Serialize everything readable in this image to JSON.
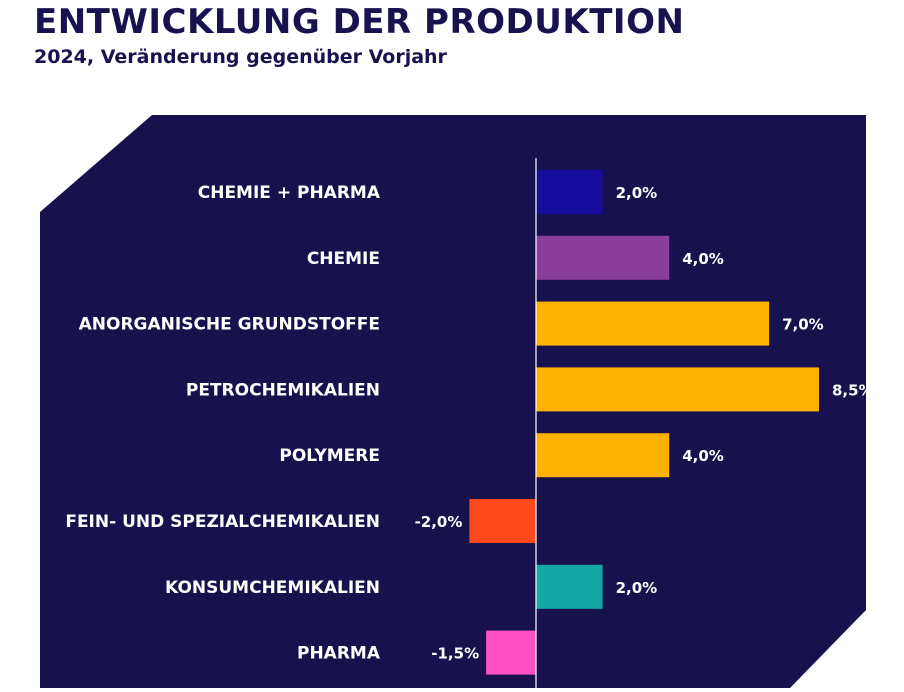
{
  "header": {
    "title": "ENTWICKLUNG DER PRODUKTION",
    "subtitle": "2024, Veränderung gegenüber Vorjahr"
  },
  "colors": {
    "panel": "#17124e",
    "title": "#18124f",
    "axis": "#ffffff"
  },
  "chart_data": {
    "type": "bar",
    "orientation": "horizontal",
    "title": "ENTWICKLUNG DER PRODUKTION",
    "subtitle": "2024, Veränderung gegenüber Vorjahr",
    "xlabel": "",
    "ylabel": "",
    "grid": false,
    "xlim": [
      -2.5,
      8.5
    ],
    "categories": [
      "CHEMIE + PHARMA",
      "CHEMIE",
      "ANORGANISCHE GRUNDSTOFFE",
      "PETROCHEMIKALIEN",
      "POLYMERE",
      "FEIN- UND SPEZIALCHEMIKALIEN",
      "KONSUMCHEMIKALIEN",
      "PHARMA"
    ],
    "values": [
      2.0,
      4.0,
      7.0,
      8.5,
      4.0,
      -2.0,
      2.0,
      -1.5
    ],
    "value_labels": [
      "2,0%",
      "4,0%",
      "7,0%",
      "8,5%",
      "4,0%",
      "-2,0%",
      "2,0%",
      "-1,5%"
    ],
    "bar_colors": [
      "#170c9e",
      "#8b3d9c",
      "#fdb100",
      "#fdb100",
      "#fdb100",
      "#ff4a1c",
      "#13a8a3",
      "#ff4fc4"
    ]
  }
}
